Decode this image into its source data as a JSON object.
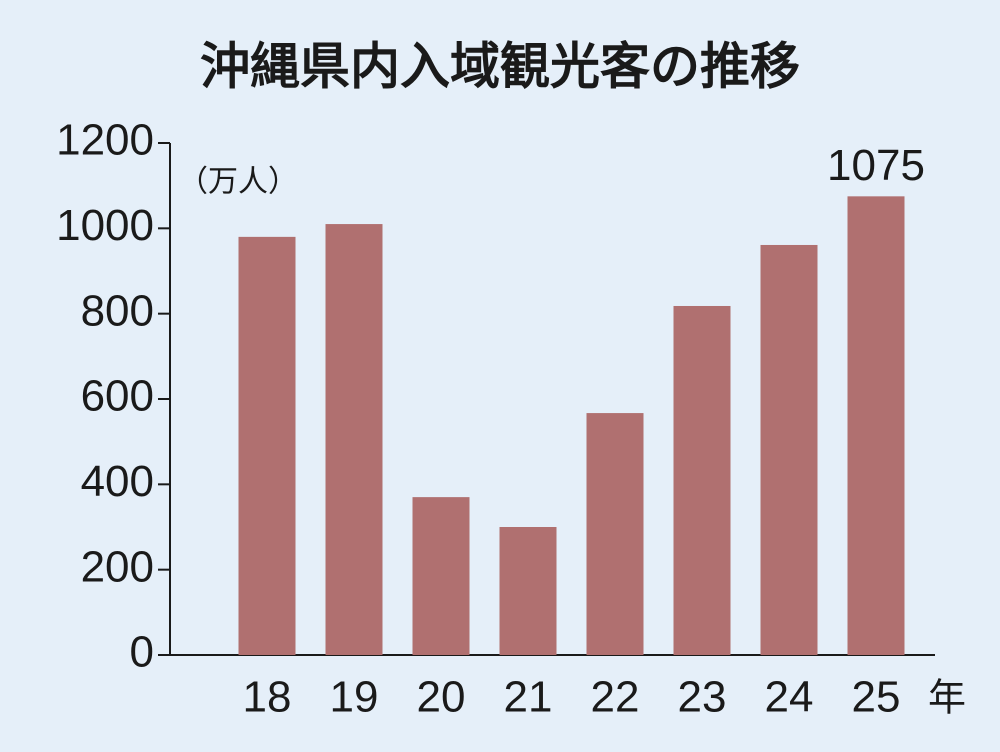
{
  "chart_data": {
    "type": "bar",
    "title": "沖縄県内入域観光客の推移",
    "y_label": "（万人）",
    "x_label": "年",
    "categories": [
      "18",
      "19",
      "20",
      "21",
      "22",
      "23",
      "24",
      "25"
    ],
    "values": [
      980,
      1010,
      370,
      300,
      567,
      818,
      961,
      1075
    ],
    "value_labels": [
      null,
      null,
      null,
      null,
      null,
      null,
      null,
      "1075"
    ],
    "color": "#b07070",
    "ylim": [
      0,
      1200
    ],
    "yticks": [
      0,
      200,
      400,
      600,
      800,
      1000,
      1200
    ],
    "grid": false
  }
}
